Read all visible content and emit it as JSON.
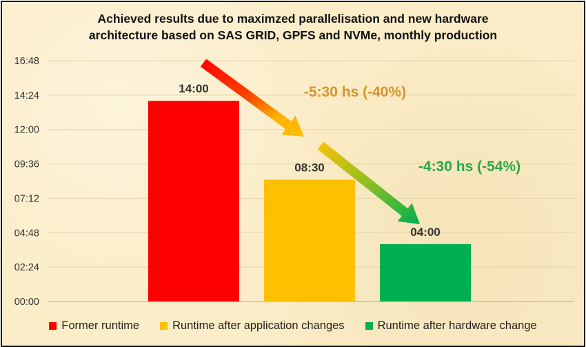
{
  "chart_data": {
    "type": "bar",
    "title": "Achieved results due to maximzed parallelisation and new hardware architecture based on SAS GRID, GPFS and NVMe, monthly production",
    "title_lines": [
      "Achieved results due to maximzed parallelisation and new hardware",
      "architecture based on SAS GRID, GPFS and NVMe, monthly production"
    ],
    "categories": [
      "Former runtime",
      "Runtime after application changes",
      "Runtime after hardware change"
    ],
    "values_hours": [
      14.0,
      8.5,
      4.0
    ],
    "data_labels": [
      "14:00",
      "08:30",
      "04:00"
    ],
    "colors": [
      "#ff0000",
      "#ffc000",
      "#00b050"
    ],
    "ylim_hours": [
      0,
      16.8
    ],
    "y_ticks_hours": [
      0,
      2.4,
      4.8,
      7.2,
      9.6,
      12.0,
      14.4,
      16.8
    ],
    "y_tick_labels": [
      "00:00",
      "02:24",
      "04:48",
      "07:12",
      "09:36",
      "12:00",
      "14:24",
      "16:48"
    ],
    "grid": true,
    "legend_position": "bottom",
    "annotations": [
      {
        "text": "-5:30 hs (-40%)",
        "color": "#d4952a"
      },
      {
        "text": "-4:30 hs (-54%)",
        "color": "#2aa64b"
      }
    ]
  }
}
